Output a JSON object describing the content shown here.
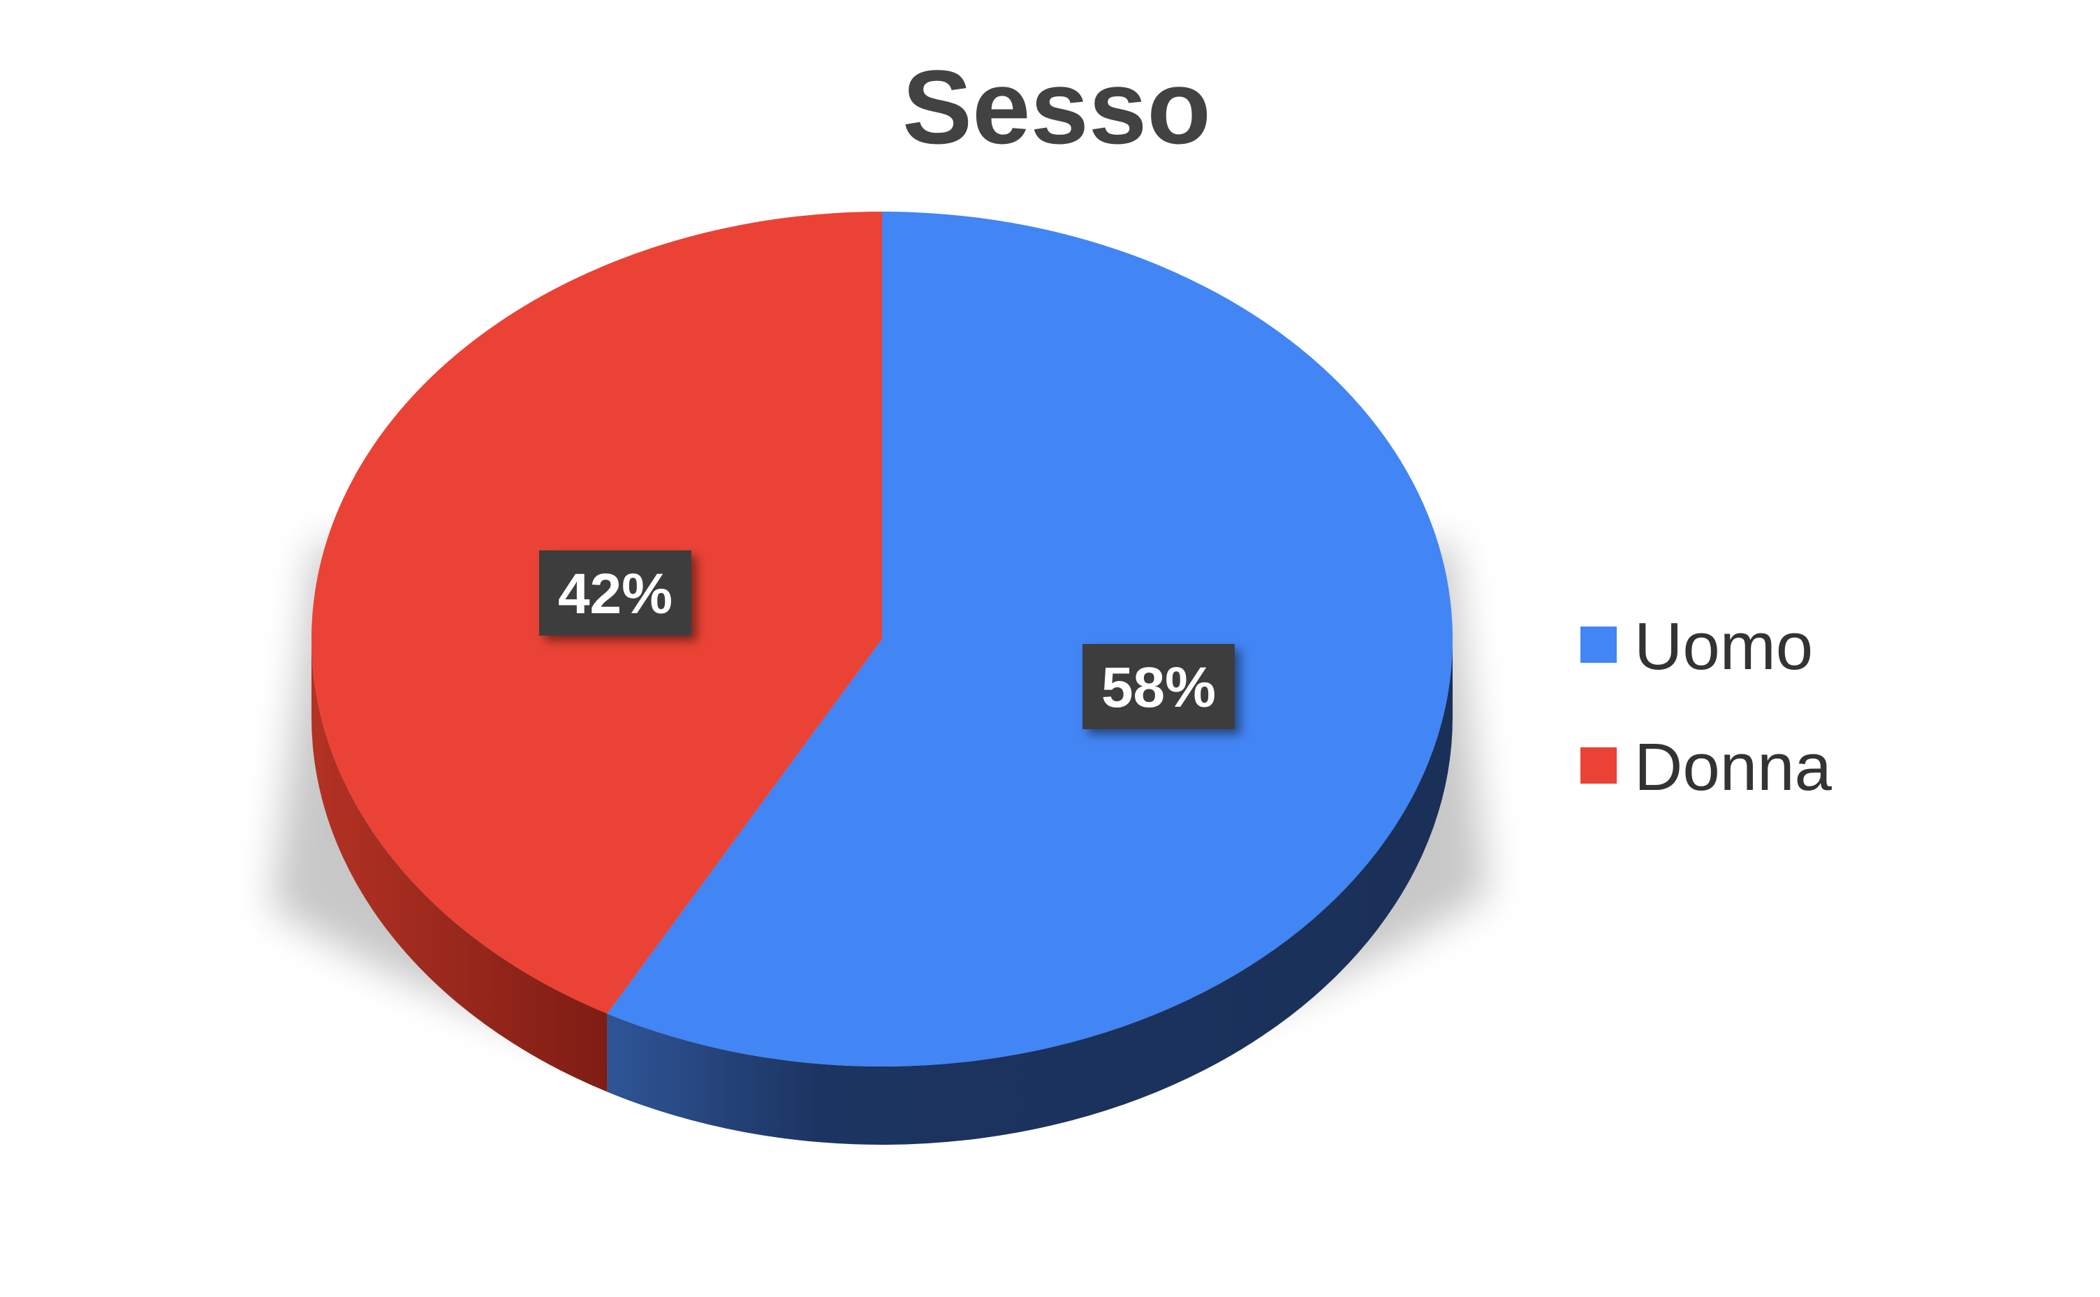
{
  "chart_data": {
    "type": "pie",
    "title": "Sesso",
    "categories": [
      "Uomo",
      "Donna"
    ],
    "values": [
      58,
      42
    ],
    "labels": [
      "58%",
      "42%"
    ],
    "colors": [
      "#4285f4",
      "#ea4335"
    ],
    "side_colors": [
      "#1c3461",
      "#8e2319"
    ],
    "legend": {
      "placement": "right",
      "items": [
        {
          "name": "Uomo",
          "color": "#4285f4"
        },
        {
          "name": "Donna",
          "color": "#ea4335"
        }
      ]
    },
    "style": "3d"
  }
}
